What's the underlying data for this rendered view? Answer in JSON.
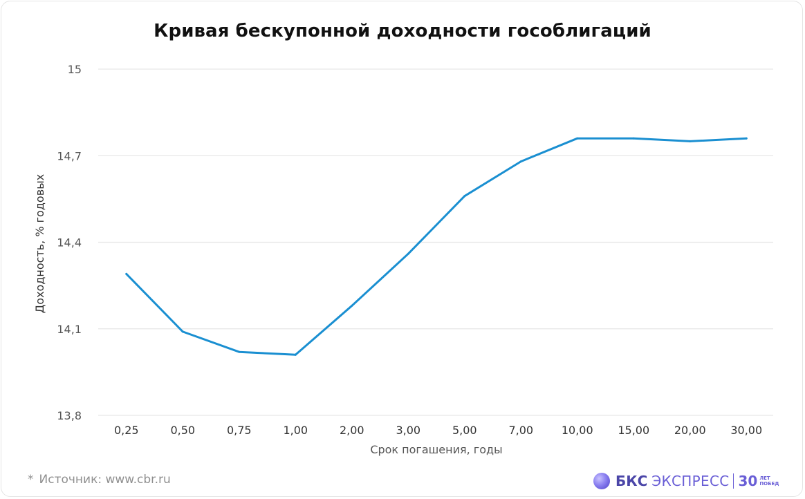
{
  "chart_data": {
    "type": "line",
    "title": "Кривая бескупонной доходности гособлигаций",
    "xlabel": "Срок погашения, годы",
    "ylabel": "Доходность, % годовых",
    "categories": [
      "0,25",
      "0,50",
      "0,75",
      "1,00",
      "2,00",
      "3,00",
      "5,00",
      "7,00",
      "10,00",
      "15,00",
      "20,00",
      "30,00"
    ],
    "series": [
      {
        "values": [
          14.29,
          14.09,
          14.02,
          14.01,
          14.18,
          14.36,
          14.56,
          14.68,
          14.76,
          14.76,
          14.75,
          14.76
        ]
      }
    ],
    "ylim": [
      13.8,
      15
    ],
    "yticks": [
      13.8,
      14.1,
      14.4,
      14.7,
      15
    ],
    "ytick_labels": [
      "13,8",
      "14,1",
      "14,4",
      "14,7",
      "15"
    ],
    "grid": "horizontal",
    "line_color": "#1a8fd1",
    "grid_color": "#e6e6e6"
  },
  "footer": {
    "star": "*",
    "source": "Источник: www.cbr.ru"
  },
  "brand": {
    "bks": "БКС",
    "express": "ЭКСПРЕСС",
    "num": "30",
    "let_top": "ЛЕТ",
    "let_bottom": "ПОБЕД",
    "color": "#4b46a8"
  }
}
